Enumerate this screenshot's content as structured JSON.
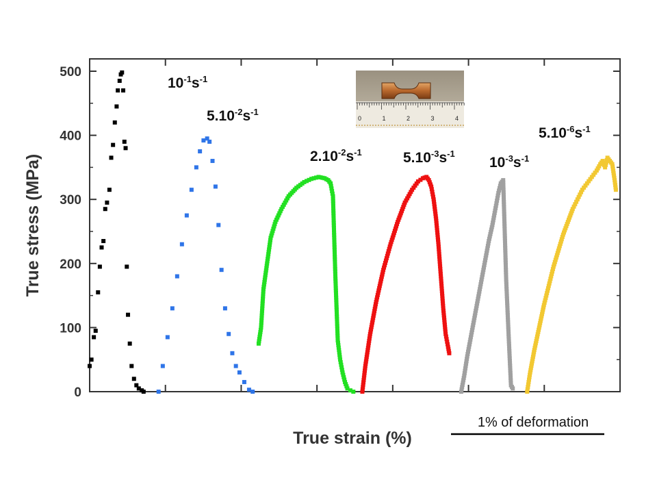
{
  "chart_data": {
    "type": "scatter",
    "ylabel": "True stress (MPa)",
    "xlabel": "True strain (%)",
    "ylim": [
      0,
      500
    ],
    "yticks": [
      "0",
      "100",
      "200",
      "300",
      "400",
      "500"
    ],
    "xtick_count": 7,
    "grid": false,
    "legend": "inline labels above each curve",
    "scale_bar_label": "1% of deformation",
    "inset": {
      "description": "photo of dog-bone specimen on ruler",
      "ruler_numbers": [
        "0",
        "1",
        "2",
        "3",
        "4"
      ]
    },
    "series": [
      {
        "name": "10-1s-1",
        "label_parts": [
          [
            "10",
            ""
          ],
          [
            "-1",
            "sup"
          ],
          [
            "s",
            ""
          ],
          [
            "-1",
            "sup"
          ]
        ],
        "color": "#000000",
        "marker": "square",
        "x": [
          0.0,
          0.03,
          0.07,
          0.1,
          0.14,
          0.17,
          0.2,
          0.23,
          0.26,
          0.29,
          0.33,
          0.36,
          0.39,
          0.42,
          0.45,
          0.47,
          0.5,
          0.52,
          0.54,
          0.56,
          0.58,
          0.6,
          0.62,
          0.64,
          0.67,
          0.7,
          0.74,
          0.78,
          0.82,
          0.87,
          0.9
        ],
        "y": [
          40,
          50,
          85,
          95,
          155,
          195,
          225,
          235,
          285,
          295,
          315,
          365,
          385,
          420,
          445,
          470,
          485,
          495,
          498,
          470,
          390,
          380,
          195,
          120,
          75,
          40,
          20,
          10,
          5,
          2,
          0
        ]
      },
      {
        "name": "5.10-2s-1",
        "label_parts": [
          [
            "5.10",
            ""
          ],
          [
            "-2",
            "sup"
          ],
          [
            "s",
            ""
          ],
          [
            "-1",
            "sup"
          ]
        ],
        "color": "#2f75e8",
        "marker": "square",
        "x": [
          1.15,
          1.22,
          1.3,
          1.38,
          1.46,
          1.54,
          1.62,
          1.7,
          1.78,
          1.84,
          1.9,
          1.96,
          2.0,
          2.05,
          2.1,
          2.15,
          2.2,
          2.26,
          2.32,
          2.38,
          2.44,
          2.5,
          2.58,
          2.66,
          2.72
        ],
        "y": [
          0,
          40,
          85,
          130,
          180,
          230,
          275,
          315,
          350,
          375,
          392,
          395,
          390,
          360,
          320,
          260,
          190,
          130,
          90,
          60,
          40,
          30,
          15,
          3,
          0
        ]
      },
      {
        "name": "2.10-2s-1",
        "label_parts": [
          [
            "2.10",
            ""
          ],
          [
            "-2",
            "sup"
          ],
          [
            "s",
            ""
          ],
          [
            "-1",
            "sup"
          ]
        ],
        "color": "#22e022",
        "marker": "square",
        "x": [
          2.82,
          2.86,
          2.9,
          2.96,
          3.02,
          3.1,
          3.2,
          3.32,
          3.45,
          3.58,
          3.7,
          3.82,
          3.92,
          3.98,
          4.02,
          4.06,
          4.1,
          4.14,
          4.18,
          4.22,
          4.26,
          4.3,
          4.35,
          4.4
        ],
        "y": [
          75,
          100,
          160,
          200,
          240,
          265,
          285,
          305,
          318,
          327,
          332,
          335,
          333,
          330,
          325,
          305,
          180,
          80,
          50,
          30,
          15,
          5,
          2,
          0
        ]
      },
      {
        "name": "5.10-3s-1",
        "label_parts": [
          [
            "5.10",
            ""
          ],
          [
            "-3",
            "sup"
          ],
          [
            "s",
            ""
          ],
          [
            "-1",
            "sup"
          ]
        ],
        "color": "#ee1111",
        "marker": "square",
        "x": [
          4.55,
          4.6,
          4.68,
          4.78,
          4.9,
          5.02,
          5.14,
          5.26,
          5.38,
          5.48,
          5.56,
          5.62,
          5.66,
          5.7,
          5.74,
          5.78,
          5.82,
          5.86,
          5.9,
          5.94,
          5.98,
          6.0
        ],
        "y": [
          0,
          40,
          90,
          140,
          190,
          230,
          265,
          295,
          315,
          328,
          333,
          335,
          330,
          320,
          300,
          270,
          230,
          180,
          130,
          90,
          70,
          60
        ]
      },
      {
        "name": "10-3s-1",
        "label_parts": [
          [
            "10",
            ""
          ],
          [
            "-3",
            "sup"
          ],
          [
            "s",
            ""
          ],
          [
            "-1",
            "sup"
          ]
        ],
        "color": "#a0a0a0",
        "marker": "square",
        "x": [
          6.2,
          6.25,
          6.3,
          6.36,
          6.42,
          6.48,
          6.54,
          6.6,
          6.66,
          6.72,
          6.78,
          6.82,
          6.86,
          6.9,
          6.95,
          6.99,
          7.03,
          7.06
        ],
        "y": [
          0,
          25,
          55,
          85,
          115,
          145,
          175,
          205,
          235,
          260,
          290,
          310,
          325,
          330,
          175,
          90,
          10,
          5
        ]
      },
      {
        "name": "5.10-6s-1",
        "label_parts": [
          [
            "5.10",
            ""
          ],
          [
            "-6",
            "sup"
          ],
          [
            "s",
            ""
          ],
          [
            "-1",
            "sup"
          ]
        ],
        "color": "#f2c832",
        "marker": "square",
        "x": [
          7.3,
          7.35,
          7.42,
          7.5,
          7.58,
          7.66,
          7.74,
          7.82,
          7.9,
          7.98,
          8.06,
          8.14,
          8.22,
          8.3,
          8.38,
          8.46,
          8.52,
          8.56,
          8.6,
          8.64,
          8.68,
          8.72,
          8.76,
          8.78
        ],
        "y": [
          0,
          30,
          65,
          100,
          135,
          165,
          195,
          220,
          245,
          265,
          285,
          300,
          315,
          325,
          335,
          345,
          355,
          360,
          350,
          365,
          360,
          355,
          330,
          315
        ]
      }
    ]
  }
}
